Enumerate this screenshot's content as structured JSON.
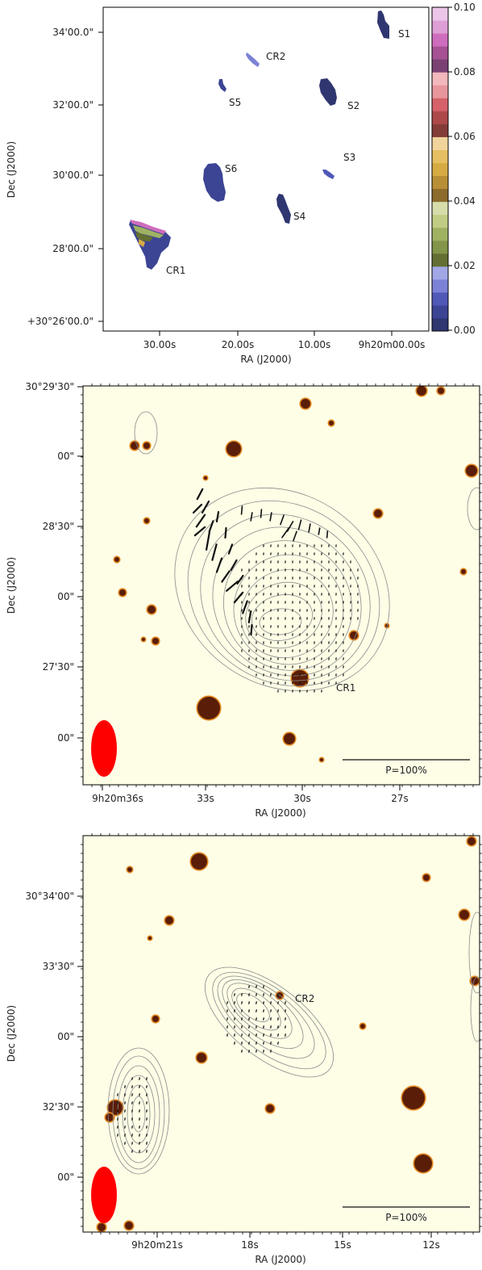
{
  "chart_data": [
    {
      "type": "heatmap",
      "panel": "top-map",
      "xlabel": "RA (J2000)",
      "ylabel": "Dec (J2000)",
      "x_ticks": [
        "30.00s",
        "20.00s",
        "10.00s",
        "9h20m00.00s"
      ],
      "y_ticks": [
        "34'00.0\"",
        "32'00.0\"",
        "30'00.0\"",
        "28'00.0\"",
        "+30°26'00.0\""
      ],
      "colorbar": {
        "range": [
          0.0,
          0.1
        ],
        "tick_labels": [
          "0.10",
          "0.08",
          "0.06",
          "0.04",
          "0.02",
          "0.00"
        ],
        "colors": [
          "#2f3670",
          "#3c4494",
          "#5058b8",
          "#7b82d6",
          "#a2a7e6",
          "#636e33",
          "#83954a",
          "#9fb262",
          "#c1cd85",
          "#d7dcab",
          "#8c6b2c",
          "#b88f36",
          "#d6ab44",
          "#e6bf62",
          "#f0d49b",
          "#843c39",
          "#ad494a",
          "#d6616b",
          "#e7969c",
          "#f2b8bc",
          "#7b4173",
          "#a55194",
          "#ce6dbd",
          "#de9ed6",
          "#ecc6e8"
        ]
      },
      "sources": [
        "S1",
        "CR2",
        "S5",
        "S2",
        "S3",
        "S6",
        "S4",
        "CR1"
      ]
    },
    {
      "type": "scatter",
      "panel": "cr1-polarization",
      "xlabel": "RA (J2000)",
      "ylabel": "Dec (J2000)",
      "x_ticks": [
        "9h20m36s",
        "33s",
        "30s",
        "27s"
      ],
      "y_ticks": [
        "30°29'30\"",
        "00\"",
        "28'30\"",
        "00\"",
        "27'30\"",
        "00\""
      ],
      "scale_bar": "P=100%",
      "source_label": "CR1"
    },
    {
      "type": "scatter",
      "panel": "cr2-polarization",
      "xlabel": "RA (J2000)",
      "ylabel": "Dec (J2000)",
      "x_ticks": [
        "9h20m21s",
        "18s",
        "15s",
        "12s"
      ],
      "y_ticks": [
        "30°34'00\"",
        "33'30\"",
        "00\"",
        "32'30\"",
        "00\""
      ],
      "scale_bar": "P=100%",
      "source_label": "CR2"
    }
  ]
}
